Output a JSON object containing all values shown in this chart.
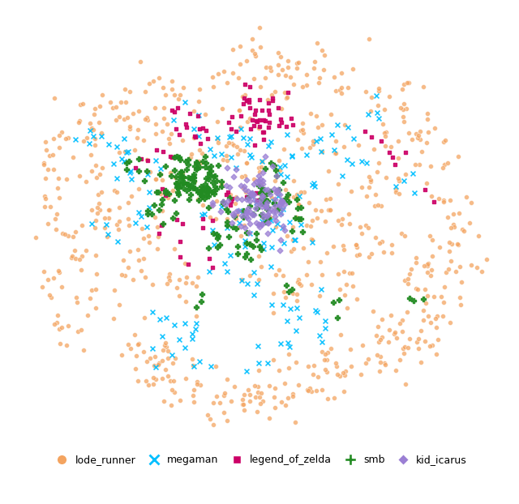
{
  "categories": [
    "lode_runner",
    "megaman",
    "legend_of_zelda",
    "smb",
    "kid_icarus"
  ],
  "colors": {
    "lode_runner": "#F4A460",
    "megaman": "#00BFFF",
    "legend_of_zelda": "#CC0066",
    "smb": "#228B22",
    "kid_icarus": "#9B7FD4"
  },
  "markers": {
    "lode_runner": "o",
    "megaman": "x",
    "legend_of_zelda": "s",
    "smb": "P",
    "kid_icarus": "D"
  },
  "marker_sizes": {
    "lode_runner": 18,
    "megaman": 18,
    "legend_of_zelda": 12,
    "smb": 18,
    "kid_icarus": 12
  },
  "legend_marker_sizes": {
    "lode_runner": 9,
    "megaman": 9,
    "legend_of_zelda": 7,
    "smb": 10,
    "kid_icarus": 7
  },
  "background_color": "#ffffff",
  "figsize": [
    6.4,
    6.22
  ],
  "dpi": 100
}
